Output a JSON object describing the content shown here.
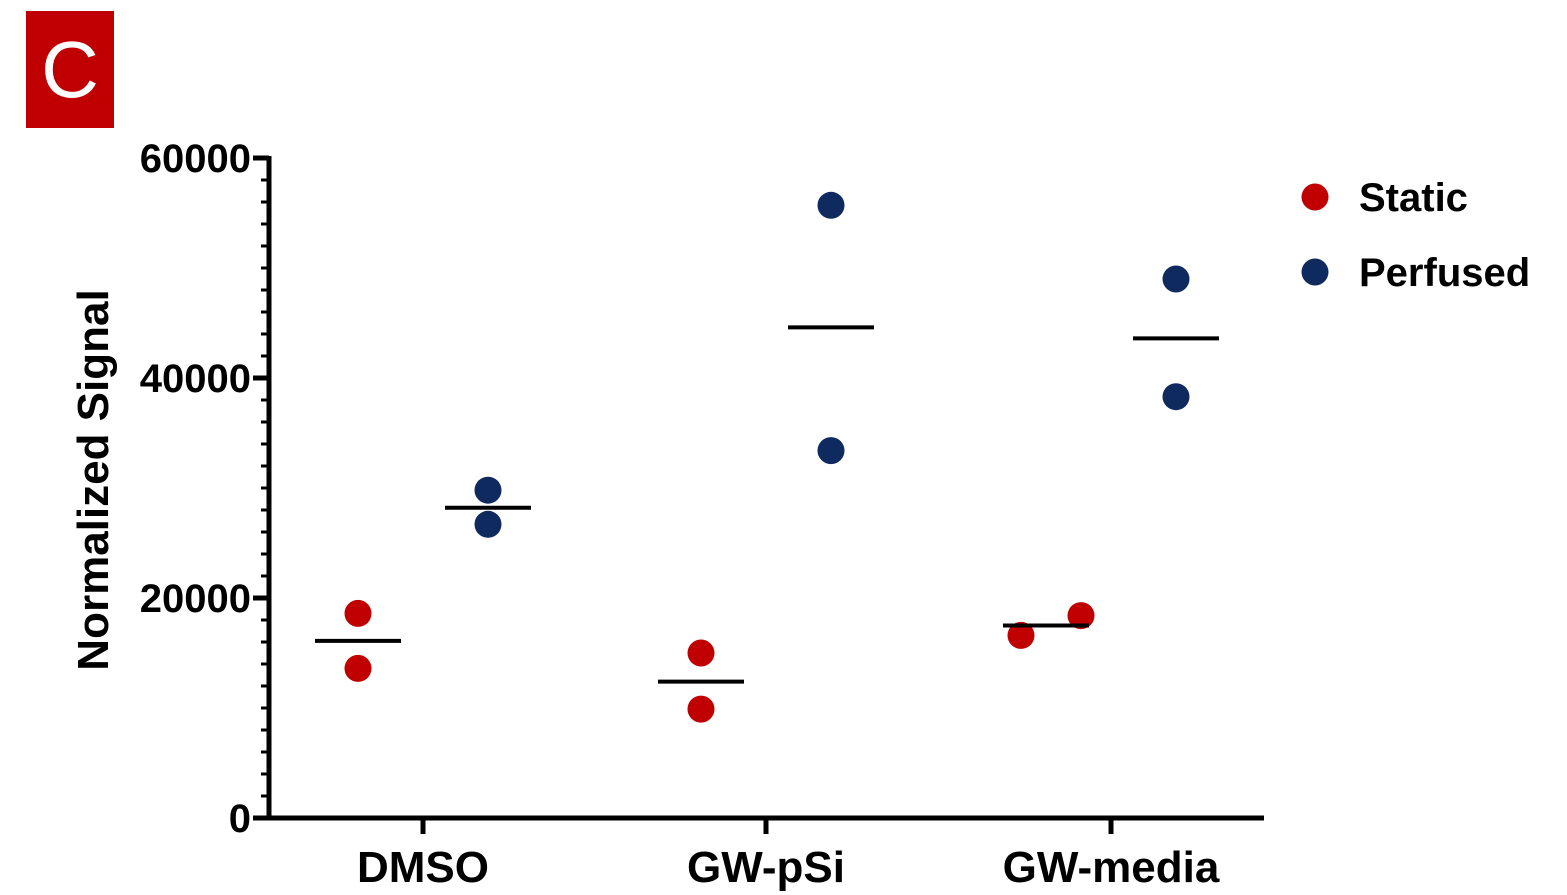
{
  "panel": {
    "label": "C",
    "color": "#C00000"
  },
  "chart_data": {
    "type": "scatter",
    "ylabel": "Normalized  Signal",
    "xlabel": "",
    "ylim": [
      0,
      60000
    ],
    "yticks": [
      0,
      20000,
      40000,
      60000
    ],
    "categories": [
      "DMSO",
      "GW-pSi",
      "GW-media"
    ],
    "series": [
      {
        "name": "Static",
        "color": "#C00000",
        "values": [
          [
            18600,
            13600
          ],
          [
            15000,
            9900
          ],
          [
            16600,
            18400
          ]
        ],
        "means": [
          16100,
          12400,
          17500
        ]
      },
      {
        "name": "Perfused",
        "color": "#0E2A5E",
        "values": [
          [
            29800,
            26700
          ],
          [
            55700,
            33400
          ],
          [
            49000,
            38300
          ]
        ],
        "means": [
          28200,
          44600,
          43600
        ]
      }
    ],
    "legend": "top-right",
    "grid": false
  }
}
